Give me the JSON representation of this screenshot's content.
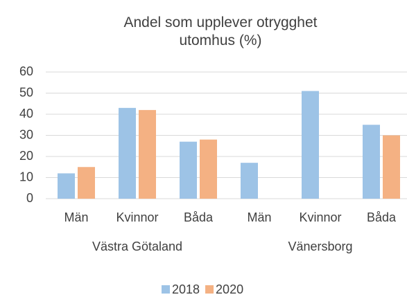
{
  "chart_data": {
    "type": "bar",
    "title": "Andel som upplever otrygghet utomhus (%)",
    "groups": [
      {
        "name": "Västra Götaland",
        "categories": [
          "Män",
          "Kvinnor",
          "Båda"
        ]
      },
      {
        "name": "Vänersborg",
        "categories": [
          "Män",
          "Kvinnor",
          "Båda"
        ]
      }
    ],
    "series": [
      {
        "name": "2018",
        "color": "#9dc3e6",
        "values": [
          12,
          43,
          27,
          17,
          51,
          35
        ]
      },
      {
        "name": "2020",
        "color": "#f4b183",
        "values": [
          15,
          42,
          28,
          null,
          null,
          30
        ]
      }
    ],
    "ylim": [
      0,
      60
    ],
    "yticks": [
      0,
      10,
      20,
      30,
      40,
      50,
      60
    ],
    "grid": true,
    "legend": "bottom"
  }
}
